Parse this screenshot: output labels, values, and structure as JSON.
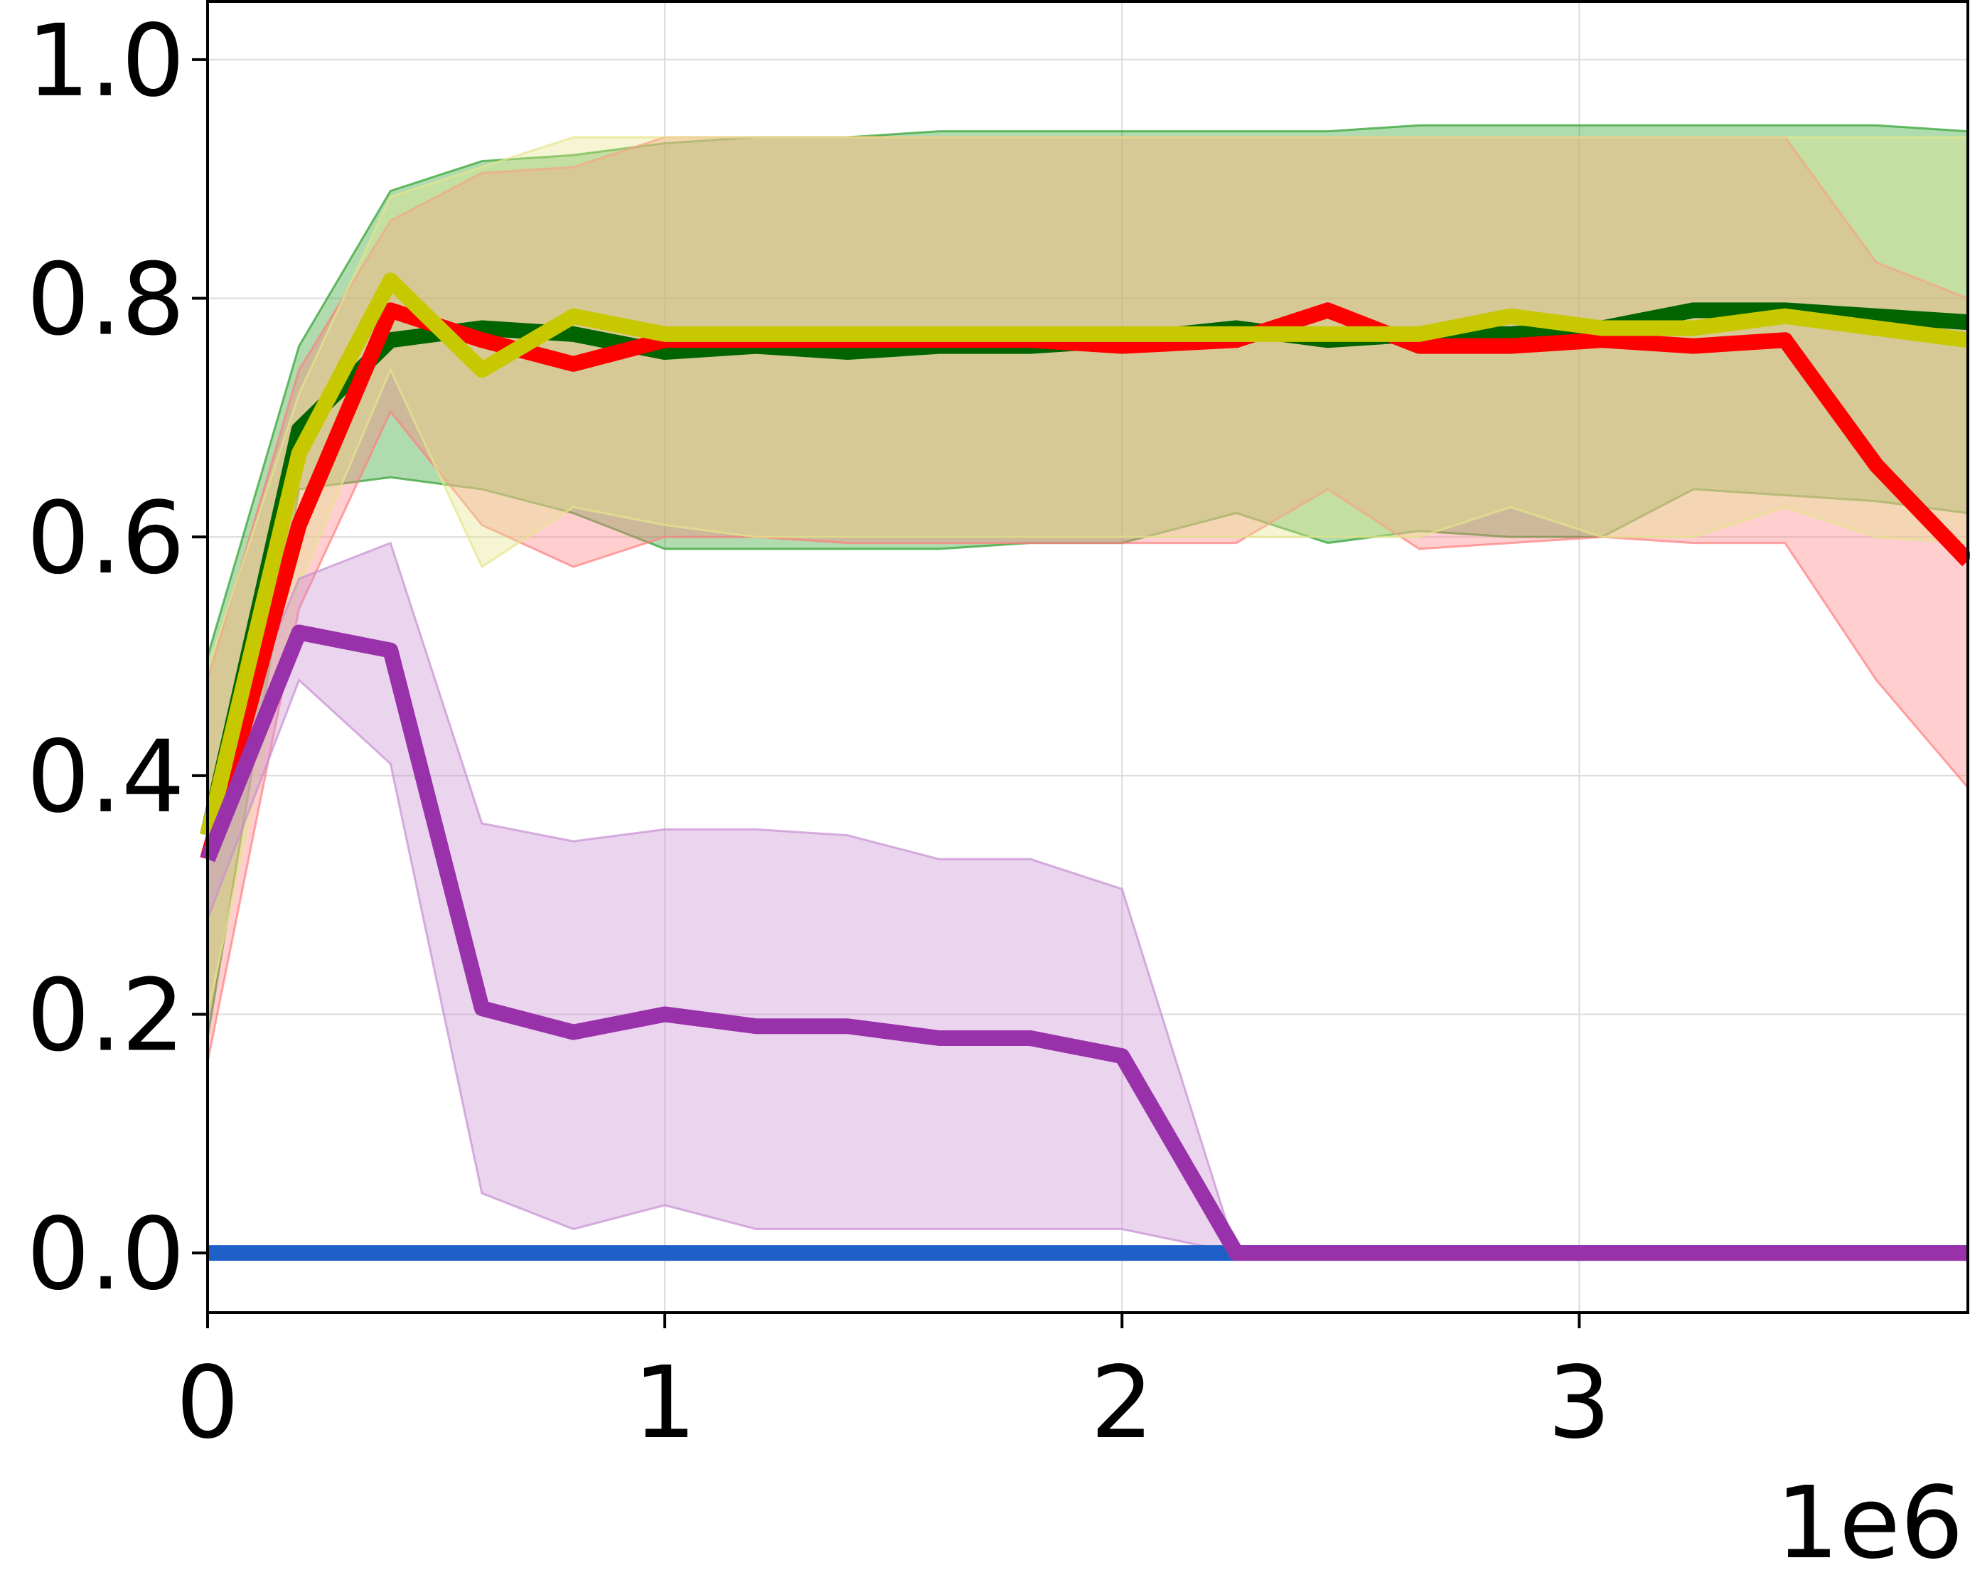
{
  "chart_data": {
    "type": "line",
    "title": "",
    "xlabel": "",
    "ylabel": "",
    "x_offset_text": "1e6",
    "xlim": [
      0,
      3850000
    ],
    "ylim": [
      -0.05,
      1.05
    ],
    "xticks": [
      0,
      1000000,
      2000000,
      3000000
    ],
    "xtick_labels": [
      "0",
      "1",
      "2",
      "3"
    ],
    "yticks": [
      0.0,
      0.2,
      0.4,
      0.6,
      0.8,
      1.0
    ],
    "ytick_labels": [
      "0.0",
      "0.2",
      "0.4",
      "0.6",
      "0.8",
      "1.0"
    ],
    "grid": true,
    "legend": "none",
    "x": [
      0,
      200000,
      400000,
      600000,
      800000,
      1000000,
      1200000,
      1400000,
      1600000,
      1800000,
      2000000,
      2250000,
      2450000,
      2650000,
      2850000,
      3050000,
      3250000,
      3450000,
      3650000,
      3850000
    ],
    "series": [
      {
        "color": "#006400",
        "band_color": "#2ca02c",
        "values": [
          0.35,
          0.69,
          0.765,
          0.775,
          0.77,
          0.755,
          0.76,
          0.755,
          0.76,
          0.76,
          0.765,
          0.775,
          0.765,
          0.77,
          0.77,
          0.775,
          0.79,
          0.79,
          0.785,
          0.78
        ],
        "upper": [
          0.5,
          0.76,
          0.89,
          0.915,
          0.92,
          0.93,
          0.935,
          0.935,
          0.94,
          0.94,
          0.94,
          0.94,
          0.94,
          0.945,
          0.945,
          0.945,
          0.945,
          0.945,
          0.945,
          0.94
        ],
        "lower": [
          0.18,
          0.64,
          0.65,
          0.64,
          0.62,
          0.59,
          0.59,
          0.59,
          0.59,
          0.595,
          0.595,
          0.62,
          0.595,
          0.605,
          0.6,
          0.6,
          0.64,
          0.635,
          0.63,
          0.62
        ]
      },
      {
        "color": "#ff0000",
        "band_color": "#ff7f7f",
        "values": [
          0.33,
          0.61,
          0.79,
          0.765,
          0.745,
          0.765,
          0.765,
          0.765,
          0.765,
          0.765,
          0.76,
          0.765,
          0.79,
          0.76,
          0.76,
          0.765,
          0.76,
          0.765,
          0.66,
          0.58
        ],
        "upper": [
          0.48,
          0.74,
          0.865,
          0.905,
          0.91,
          0.935,
          0.935,
          0.935,
          0.935,
          0.935,
          0.935,
          0.935,
          0.935,
          0.935,
          0.935,
          0.935,
          0.935,
          0.935,
          0.83,
          0.8
        ],
        "lower": [
          0.16,
          0.54,
          0.705,
          0.61,
          0.575,
          0.6,
          0.6,
          0.595,
          0.595,
          0.595,
          0.595,
          0.595,
          0.64,
          0.59,
          0.595,
          0.6,
          0.595,
          0.595,
          0.48,
          0.39
        ]
      },
      {
        "color": "#c8c800",
        "band_color": "#e6e68c",
        "values": [
          0.35,
          0.67,
          0.815,
          0.74,
          0.785,
          0.77,
          0.77,
          0.77,
          0.77,
          0.77,
          0.77,
          0.77,
          0.77,
          0.77,
          0.785,
          0.775,
          0.775,
          0.785,
          0.775,
          0.765
        ],
        "upper": [
          0.49,
          0.72,
          0.885,
          0.91,
          0.935,
          0.935,
          0.935,
          0.935,
          0.935,
          0.935,
          0.935,
          0.935,
          0.935,
          0.935,
          0.935,
          0.935,
          0.935,
          0.935,
          0.935,
          0.935
        ],
        "lower": [
          0.2,
          0.56,
          0.74,
          0.575,
          0.625,
          0.61,
          0.6,
          0.6,
          0.6,
          0.6,
          0.6,
          0.6,
          0.6,
          0.6,
          0.625,
          0.6,
          0.6,
          0.625,
          0.6,
          0.595
        ]
      },
      {
        "color": "#9932aa",
        "band_color": "#c78fd3",
        "values": [
          0.33,
          0.52,
          0.505,
          0.205,
          0.185,
          0.2,
          0.19,
          0.19,
          0.18,
          0.18,
          0.165,
          0.0,
          0.0,
          0.0,
          0.0,
          0.0,
          0.0,
          0.0,
          0.0,
          0.0
        ],
        "upper": [
          0.38,
          0.565,
          0.595,
          0.36,
          0.345,
          0.355,
          0.355,
          0.35,
          0.33,
          0.33,
          0.305,
          0.0,
          0.0,
          0.0,
          0.0,
          0.0,
          0.0,
          0.0,
          0.0,
          0.0
        ],
        "lower": [
          0.28,
          0.48,
          0.41,
          0.05,
          0.02,
          0.04,
          0.02,
          0.02,
          0.02,
          0.02,
          0.02,
          0.0,
          0.0,
          0.0,
          0.0,
          0.0,
          0.0,
          0.0,
          0.0,
          0.0
        ]
      },
      {
        "color": "#1f5fc8",
        "values": [
          0.0,
          0.0,
          0.0,
          0.0,
          0.0,
          0.0,
          0.0,
          0.0,
          0.0,
          0.0,
          0.0,
          0.0,
          0.0,
          0.0,
          0.0,
          0.0,
          0.0,
          0.0,
          0.0,
          0.0
        ]
      }
    ]
  }
}
